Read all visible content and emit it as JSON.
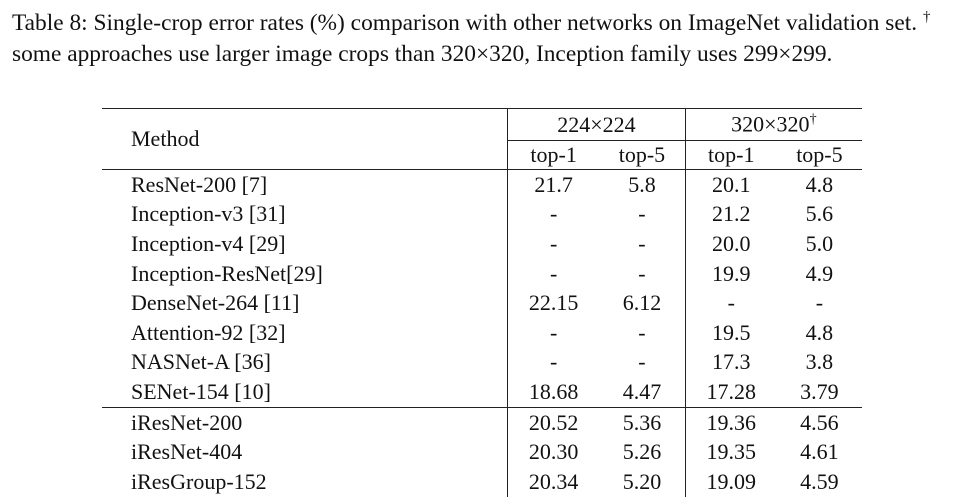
{
  "caption": {
    "lead": "Table 8: Single-crop error rates (%) comparison with other networks on ImageNet validation set.",
    "dagger": "†",
    "rest": "some approaches use larger image crops than 320×320, Inception family uses 299×299."
  },
  "table": {
    "header": {
      "method": "Method",
      "groups": [
        {
          "label": "224×224"
        },
        {
          "label": "320×320",
          "mark": "†"
        }
      ],
      "columns": [
        "top-1",
        "top-5",
        "top-1",
        "top-5"
      ]
    },
    "sections": [
      [
        [
          "ResNet-200 [7]",
          "21.7",
          "5.8",
          "20.1",
          "4.8"
        ],
        [
          "Inception-v3 [31]",
          "-",
          "-",
          "21.2",
          "5.6"
        ],
        [
          "Inception-v4 [29]",
          "-",
          "-",
          "20.0",
          "5.0"
        ],
        [
          "Inception-ResNet[29]",
          "-",
          "-",
          "19.9",
          "4.9"
        ],
        [
          "DenseNet-264 [11]",
          "22.15",
          "6.12",
          "-",
          "-"
        ],
        [
          "Attention-92 [32]",
          "-",
          "-",
          "19.5",
          "4.8"
        ],
        [
          "NASNet-A [36]",
          "-",
          "-",
          "17.3",
          "3.8"
        ],
        [
          "SENet-154 [10]",
          "18.68",
          "4.47",
          "17.28",
          "3.79"
        ]
      ],
      [
        [
          "iResNet-200",
          "20.52",
          "5.36",
          "19.36",
          "4.56"
        ],
        [
          "iResNet-404",
          "20.30",
          "5.26",
          "19.35",
          "4.61"
        ],
        [
          "iResGroup-152",
          "20.34",
          "5.20",
          "19.09",
          "4.59"
        ]
      ]
    ]
  }
}
